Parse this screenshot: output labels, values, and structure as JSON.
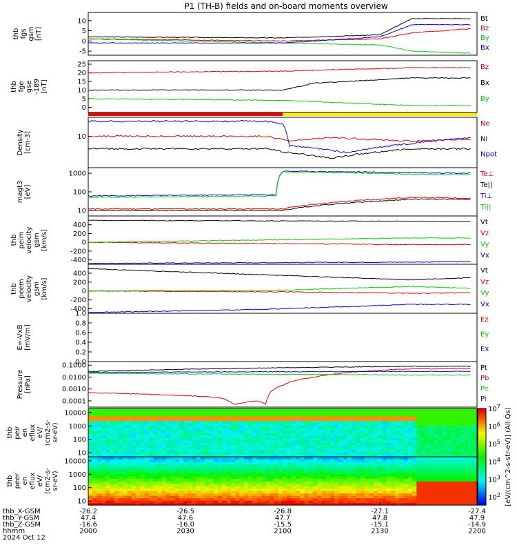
{
  "title": "P1  (TH-B) fields and on-board moments overview",
  "colors": {
    "black": "#000000",
    "red": "#dd0000",
    "green": "#00cc00",
    "blue": "#0000dd",
    "yellow": "#ffee00"
  },
  "chart_data": {
    "type": "line",
    "x_time_range": [
      "2000",
      "2200"
    ],
    "panels": [
      {
        "id": "fgs_gsm",
        "ylabel": [
          "thb",
          "fgs",
          "gsm",
          "[nT]"
        ],
        "ylim": [
          -7,
          14
        ],
        "yticks": [
          "-5",
          "0",
          "5",
          "10"
        ],
        "legend": [
          "Bt",
          "Bz",
          "By",
          "Bx"
        ],
        "series": [
          {
            "name": "Bt",
            "color": "black",
            "x": [
              0,
              60,
              90,
              100,
              118
            ],
            "y": [
              2,
              1.5,
              3,
              11,
              11
            ]
          },
          {
            "name": "Bz",
            "color": "red",
            "x": [
              0,
              60,
              90,
              100,
              118
            ],
            "y": [
              1,
              0,
              1,
              4,
              6
            ]
          },
          {
            "name": "By",
            "color": "green",
            "x": [
              0,
              60,
              90,
              100,
              118
            ],
            "y": [
              1,
              -1,
              -2,
              -5,
              -6
            ]
          },
          {
            "name": "Bx",
            "color": "blue",
            "x": [
              0,
              60,
              90,
              100,
              118
            ],
            "y": [
              -1,
              -1,
              2,
              8,
              8
            ]
          }
        ]
      },
      {
        "id": "fge_gse",
        "ylabel": [
          "thb",
          "fge",
          "gse",
          "-189",
          "[nT]"
        ],
        "ylim": [
          -3,
          27
        ],
        "yticks": [
          "0",
          "5",
          "10",
          "15",
          "20",
          "25"
        ],
        "legend": [
          "Bz",
          "Bx",
          "By"
        ],
        "series": [
          {
            "name": "Bz",
            "color": "red",
            "x": [
              0,
              60,
              100,
              118
            ],
            "y": [
              20,
              21,
              23,
              23
            ]
          },
          {
            "name": "Bx",
            "color": "black",
            "x": [
              0,
              60,
              70,
              100,
              118
            ],
            "y": [
              10,
              10,
              14,
              17,
              17
            ]
          },
          {
            "name": "By",
            "color": "green",
            "x": [
              0,
              60,
              100,
              118
            ],
            "y": [
              5,
              4,
              1,
              1
            ]
          }
        ]
      },
      {
        "id": "density",
        "ylabel": [
          "Density",
          "[cm-3]"
        ],
        "ylim": [
          1,
          40
        ],
        "log": true,
        "yticks": [
          "10"
        ],
        "legend": [
          "Ne",
          "Ni",
          "Npot"
        ],
        "series": [
          {
            "name": "Ne",
            "color": "red",
            "x": [
              0,
              55,
              62,
              75,
              100,
              118
            ],
            "y": [
              10,
              10,
              7,
              9,
              7,
              8
            ]
          },
          {
            "name": "Ni",
            "color": "black",
            "x": [
              0,
              55,
              62,
              75,
              100,
              118
            ],
            "y": [
              4,
              4,
              3,
              2,
              4,
              4
            ]
          },
          {
            "name": "Npot",
            "color": "blue",
            "x": [
              0,
              55,
              60,
              62,
              80,
              100,
              118
            ],
            "y": [
              30,
              30,
              25,
              5,
              3,
              6,
              9
            ]
          }
        ]
      },
      {
        "id": "temperature",
        "ylabel": [
          "magt3",
          "[eV]"
        ],
        "ylim": [
          5,
          2000
        ],
        "log": true,
        "yticks": [
          "10",
          "100",
          "1000"
        ],
        "legend": [
          "Te⊥",
          "Te||",
          "Ti⊥",
          "Ti||"
        ],
        "series": [
          {
            "name": "Te⊥",
            "color": "red",
            "x": [
              0,
              60,
              100,
              118
            ],
            "y": [
              12,
              12,
              50,
              45
            ]
          },
          {
            "name": "Te||",
            "color": "black",
            "x": [
              0,
              60,
              100,
              118
            ],
            "y": [
              10,
              10,
              40,
              40
            ]
          },
          {
            "name": "Ti⊥",
            "color": "blue",
            "x": [
              0,
              58,
              60,
              100,
              118
            ],
            "y": [
              60,
              70,
              1300,
              1100,
              1000
            ]
          },
          {
            "name": "Ti||",
            "color": "green",
            "x": [
              0,
              58,
              60,
              100,
              118
            ],
            "y": [
              50,
              60,
              1200,
              900,
              850
            ]
          }
        ]
      },
      {
        "id": "peim_velocity",
        "ylabel": [
          "thb",
          "peim",
          "velocity",
          "gsm",
          "[km/s]"
        ],
        "ylim": [
          -500,
          600
        ],
        "yticks": [
          "-400",
          "-200",
          "0",
          "200",
          "400"
        ],
        "legend": [
          "Vt",
          "Vz",
          "Vy",
          "Vx"
        ],
        "series": [
          {
            "name": "Vt",
            "color": "black",
            "x": [
              0,
              100,
              118
            ],
            "y": [
              500,
              480,
              470
            ]
          },
          {
            "name": "Vz",
            "color": "red",
            "x": [
              0,
              100,
              118
            ],
            "y": [
              0,
              -50,
              -50
            ]
          },
          {
            "name": "Vy",
            "color": "green",
            "x": [
              0,
              100,
              118
            ],
            "y": [
              0,
              100,
              100
            ]
          },
          {
            "name": "Vx",
            "color": "blue",
            "x": [
              0,
              100,
              118
            ],
            "y": [
              -480,
              -450,
              -440
            ]
          }
        ]
      },
      {
        "id": "peem_velocity",
        "ylabel": [
          "thb",
          "peem",
          "velocity",
          "gsm",
          "[km/s]"
        ],
        "ylim": [
          -500,
          600
        ],
        "yticks": [
          "-400",
          "-200",
          "0",
          "200",
          "400"
        ],
        "legend": [
          "Vt",
          "Vz",
          "Vy",
          "Vx"
        ],
        "series": [
          {
            "name": "Vt",
            "color": "black",
            "x": [
              0,
              60,
              80,
              100,
              118
            ],
            "y": [
              500,
              350,
              300,
              250,
              300
            ]
          },
          {
            "name": "Vz",
            "color": "red",
            "x": [
              0,
              60,
              100,
              118
            ],
            "y": [
              0,
              -20,
              -50,
              -40
            ]
          },
          {
            "name": "Vy",
            "color": "green",
            "x": [
              0,
              60,
              100,
              118
            ],
            "y": [
              0,
              20,
              100,
              60
            ]
          },
          {
            "name": "Vx",
            "color": "blue",
            "x": [
              0,
              50,
              80,
              100,
              118
            ],
            "y": [
              -480,
              -420,
              -350,
              -300,
              -300
            ]
          }
        ]
      },
      {
        "id": "efield",
        "ylabel": [
          "E=-VxB",
          "[mV/m]"
        ],
        "ylim": [
          0,
          1
        ],
        "yticks": [
          "0.0",
          "0.2",
          "0.4",
          "0.6",
          "0.8",
          "1.0"
        ],
        "legend": [
          "Ez",
          "Ey",
          "Ex"
        ],
        "series": []
      },
      {
        "id": "pressure",
        "ylabel": [
          "Pressure",
          "[nPa]"
        ],
        "ylim": [
          3e-05,
          0.2
        ],
        "log": true,
        "yticks": [
          "0.0001",
          "0.0010",
          "0.0100",
          "0.1000"
        ],
        "legend": [
          "Pt",
          "Pb",
          "Pe",
          "Pi"
        ],
        "series": [
          {
            "name": "Pt",
            "color": "black",
            "x": [
              0,
              100,
              118
            ],
            "y": [
              0.03,
              0.08,
              0.08
            ]
          },
          {
            "name": "Pb",
            "color": "red",
            "x": [
              0,
              40,
              45,
              52,
              55,
              60,
              70,
              100,
              118
            ],
            "y": [
              0.0005,
              0.0002,
              5e-05,
              0.0001,
              5e-05,
              0.002,
              0.01,
              0.05,
              0.05
            ]
          },
          {
            "name": "Pe",
            "color": "green",
            "x": [
              0,
              100,
              118
            ],
            "y": [
              0.02,
              0.015,
              0.015
            ]
          },
          {
            "name": "Pi",
            "color": "blue",
            "x": [
              0,
              100,
              118
            ],
            "y": [
              0.025,
              0.03,
              0.03
            ]
          }
        ]
      },
      {
        "id": "peir_eflux",
        "type": "heatmap",
        "ylabel": [
          "thb",
          "peir",
          "en",
          "eflux",
          "eV/",
          "(cm2-s-",
          "sr-eV)"
        ],
        "ylim": [
          5,
          20000
        ],
        "log": true,
        "yticks": [
          "10",
          "100",
          "1000",
          "10000"
        ]
      },
      {
        "id": "peer_eflux",
        "type": "heatmap",
        "ylabel": [
          "thb",
          "peer",
          "en",
          "eflux",
          "eV/",
          "(cm2-s-",
          "sr-eV)"
        ],
        "ylim": [
          5,
          20000
        ],
        "log": true,
        "yticks": [
          "10",
          "100",
          "1000",
          "10000"
        ]
      }
    ],
    "colorbar": {
      "label": "[eV/(cm^2-s-str-eV)] (All Qs)",
      "ticks": [
        "10",
        "10",
        "10",
        "10",
        "10",
        "10"
      ],
      "exponents": [
        "2",
        "3",
        "4",
        "5",
        "6",
        "7"
      ]
    },
    "region_bar": {
      "red_until": "2100",
      "yellow_from": "2100"
    },
    "ephemeris": {
      "rows": [
        {
          "label": "thb_X-GSM",
          "values": [
            "-26.2",
            "-26.5",
            "-26.8",
            "-27.1",
            "-27.4"
          ]
        },
        {
          "label": "thb_Y-GSM",
          "values": [
            "47.4",
            "47.6",
            "47.7",
            "47.8",
            "47.9"
          ]
        },
        {
          "label": "thb_Z-GSM",
          "values": [
            "-16.6",
            "-16.0",
            "-15.5",
            "-15.1",
            "-14.9"
          ]
        },
        {
          "label": "hhmm",
          "values": [
            "2000",
            "2030",
            "2100",
            "2130",
            "2200"
          ]
        }
      ],
      "date": "2024 Oct 12"
    }
  }
}
